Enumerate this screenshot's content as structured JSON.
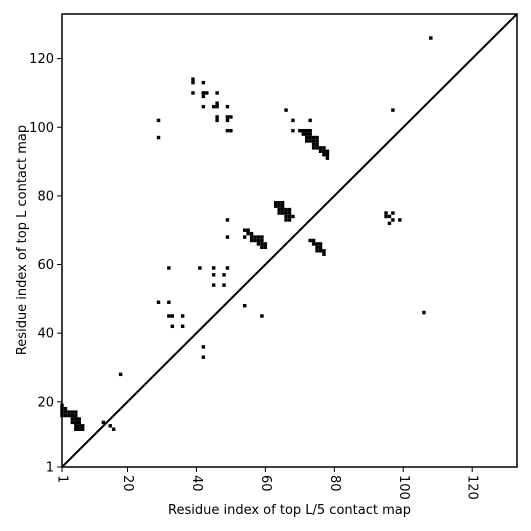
{
  "chart_data": {
    "type": "scatter",
    "xlabel": "Residue index of top L/5 contact map",
    "ylabel": "Residue index of top L contact map",
    "xlim": [
      1,
      133
    ],
    "ylim": [
      1,
      133
    ],
    "x_ticks": [
      1,
      20,
      40,
      60,
      80,
      100,
      120
    ],
    "y_ticks": [
      1,
      20,
      40,
      60,
      80,
      100,
      120
    ],
    "diagonal_line": true,
    "grid": false,
    "marker_color": "#000000",
    "series": [
      {
        "points": [
          [
            1,
            16
          ],
          [
            1,
            17
          ],
          [
            1,
            18
          ],
          [
            1,
            19
          ],
          [
            2,
            16
          ],
          [
            2,
            17
          ],
          [
            2,
            18
          ],
          [
            3,
            16
          ],
          [
            3,
            17
          ],
          [
            4,
            16
          ],
          [
            4,
            17
          ],
          [
            4,
            15
          ],
          [
            4,
            14
          ],
          [
            5,
            16
          ],
          [
            5,
            17
          ],
          [
            5,
            15
          ],
          [
            5,
            14
          ],
          [
            5,
            13
          ],
          [
            5,
            12
          ],
          [
            6,
            14
          ],
          [
            6,
            13
          ],
          [
            6,
            12
          ],
          [
            6,
            15
          ],
          [
            7,
            12
          ],
          [
            7,
            13
          ],
          [
            13,
            14
          ],
          [
            15,
            13
          ],
          [
            16,
            12
          ],
          [
            18,
            28
          ],
          [
            29,
            102
          ],
          [
            29,
            97
          ],
          [
            29,
            49
          ],
          [
            32,
            59
          ],
          [
            32,
            49
          ],
          [
            32,
            45
          ],
          [
            33,
            45
          ],
          [
            33,
            42
          ],
          [
            36,
            45
          ],
          [
            36,
            42
          ],
          [
            39,
            114
          ],
          [
            39,
            113
          ],
          [
            39,
            110
          ],
          [
            41,
            59
          ],
          [
            42,
            113
          ],
          [
            42,
            110
          ],
          [
            42,
            109
          ],
          [
            42,
            106
          ],
          [
            43,
            110
          ],
          [
            42,
            36
          ],
          [
            42,
            33
          ],
          [
            45,
            106
          ],
          [
            46,
            107
          ],
          [
            46,
            106
          ],
          [
            46,
            110
          ],
          [
            46,
            103
          ],
          [
            46,
            102
          ],
          [
            45,
            59
          ],
          [
            45,
            57
          ],
          [
            45,
            54
          ],
          [
            48,
            57
          ],
          [
            48,
            54
          ],
          [
            49,
            106
          ],
          [
            49,
            103
          ],
          [
            49,
            102
          ],
          [
            49,
            99
          ],
          [
            50,
            103
          ],
          [
            50,
            99
          ],
          [
            49,
            73
          ],
          [
            49,
            68
          ],
          [
            49,
            59
          ],
          [
            54,
            70
          ],
          [
            54,
            68
          ],
          [
            54,
            48
          ],
          [
            55,
            70
          ],
          [
            55,
            69
          ],
          [
            56,
            69
          ],
          [
            56,
            68
          ],
          [
            56,
            67
          ],
          [
            57,
            67
          ],
          [
            57,
            68
          ],
          [
            58,
            68
          ],
          [
            58,
            67
          ],
          [
            58,
            66
          ],
          [
            59,
            68
          ],
          [
            59,
            67
          ],
          [
            59,
            66
          ],
          [
            59,
            65
          ],
          [
            60,
            66
          ],
          [
            60,
            65
          ],
          [
            59,
            45
          ],
          [
            63,
            78
          ],
          [
            63,
            77
          ],
          [
            64,
            78
          ],
          [
            64,
            77
          ],
          [
            64,
            76
          ],
          [
            64,
            75
          ],
          [
            65,
            78
          ],
          [
            65,
            77
          ],
          [
            65,
            76
          ],
          [
            65,
            75
          ],
          [
            66,
            76
          ],
          [
            66,
            75
          ],
          [
            66,
            74
          ],
          [
            66,
            73
          ],
          [
            67,
            76
          ],
          [
            67,
            75
          ],
          [
            67,
            74
          ],
          [
            67,
            73
          ],
          [
            68,
            74
          ],
          [
            66,
            105
          ],
          [
            68,
            102
          ],
          [
            68,
            99
          ],
          [
            70,
            99
          ],
          [
            71,
            99
          ],
          [
            71,
            98
          ],
          [
            72,
            99
          ],
          [
            72,
            98
          ],
          [
            72,
            97
          ],
          [
            72,
            96
          ],
          [
            73,
            102
          ],
          [
            73,
            99
          ],
          [
            73,
            98
          ],
          [
            73,
            97
          ],
          [
            73,
            96
          ],
          [
            74,
            97
          ],
          [
            74,
            96
          ],
          [
            74,
            95
          ],
          [
            74,
            94
          ],
          [
            75,
            97
          ],
          [
            75,
            96
          ],
          [
            75,
            95
          ],
          [
            75,
            94
          ],
          [
            76,
            94
          ],
          [
            76,
            93
          ],
          [
            77,
            94
          ],
          [
            77,
            93
          ],
          [
            77,
            92
          ],
          [
            78,
            93
          ],
          [
            78,
            92
          ],
          [
            78,
            91
          ],
          [
            73,
            67
          ],
          [
            74,
            67
          ],
          [
            74,
            66
          ],
          [
            75,
            66
          ],
          [
            75,
            65
          ],
          [
            75,
            64
          ],
          [
            76,
            66
          ],
          [
            76,
            65
          ],
          [
            76,
            64
          ],
          [
            77,
            64
          ],
          [
            77,
            63
          ],
          [
            95,
            75
          ],
          [
            95,
            74
          ],
          [
            96,
            74
          ],
          [
            96,
            72
          ],
          [
            97,
            75
          ],
          [
            97,
            73
          ],
          [
            97,
            105
          ],
          [
            99,
            73
          ],
          [
            106,
            46
          ],
          [
            108,
            126
          ]
        ]
      }
    ]
  }
}
